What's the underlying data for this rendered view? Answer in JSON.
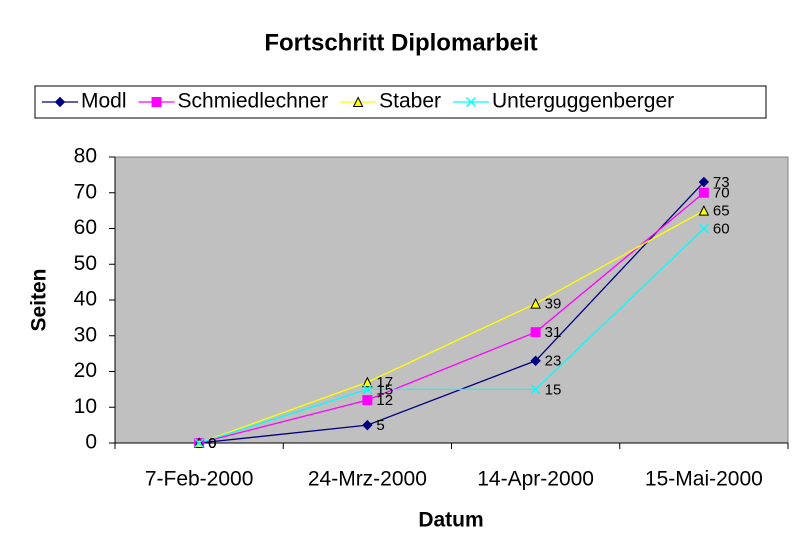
{
  "chart_data": {
    "type": "line",
    "title": "Fortschritt Diplomarbeit",
    "x_label": "Datum",
    "y_label": "Seiten",
    "categories": [
      "7-Feb-2000",
      "24-Mrz-2000",
      "14-Apr-2000",
      "15-Mai-2000"
    ],
    "series": [
      {
        "name": "Modl",
        "color": "#000080",
        "marker": "diamond",
        "values": [
          0,
          5,
          23,
          73
        ]
      },
      {
        "name": "Schmiedlechner",
        "color": "#ff00ff",
        "marker": "square",
        "values": [
          0,
          12,
          31,
          70
        ]
      },
      {
        "name": "Staber",
        "color": "#ffff00",
        "marker": "triangle",
        "values": [
          0,
          17,
          39,
          65
        ]
      },
      {
        "name": "Unterguggenberger",
        "color": "#00ffff",
        "marker": "x",
        "values": [
          0,
          15,
          15,
          60
        ]
      }
    ],
    "ylim": [
      0,
      80
    ],
    "yticks": [
      0,
      10,
      20,
      30,
      40,
      50,
      60,
      70,
      80
    ],
    "grid": false,
    "legend": "top",
    "plot_background": "#c0c0c0",
    "data_labels": true
  }
}
